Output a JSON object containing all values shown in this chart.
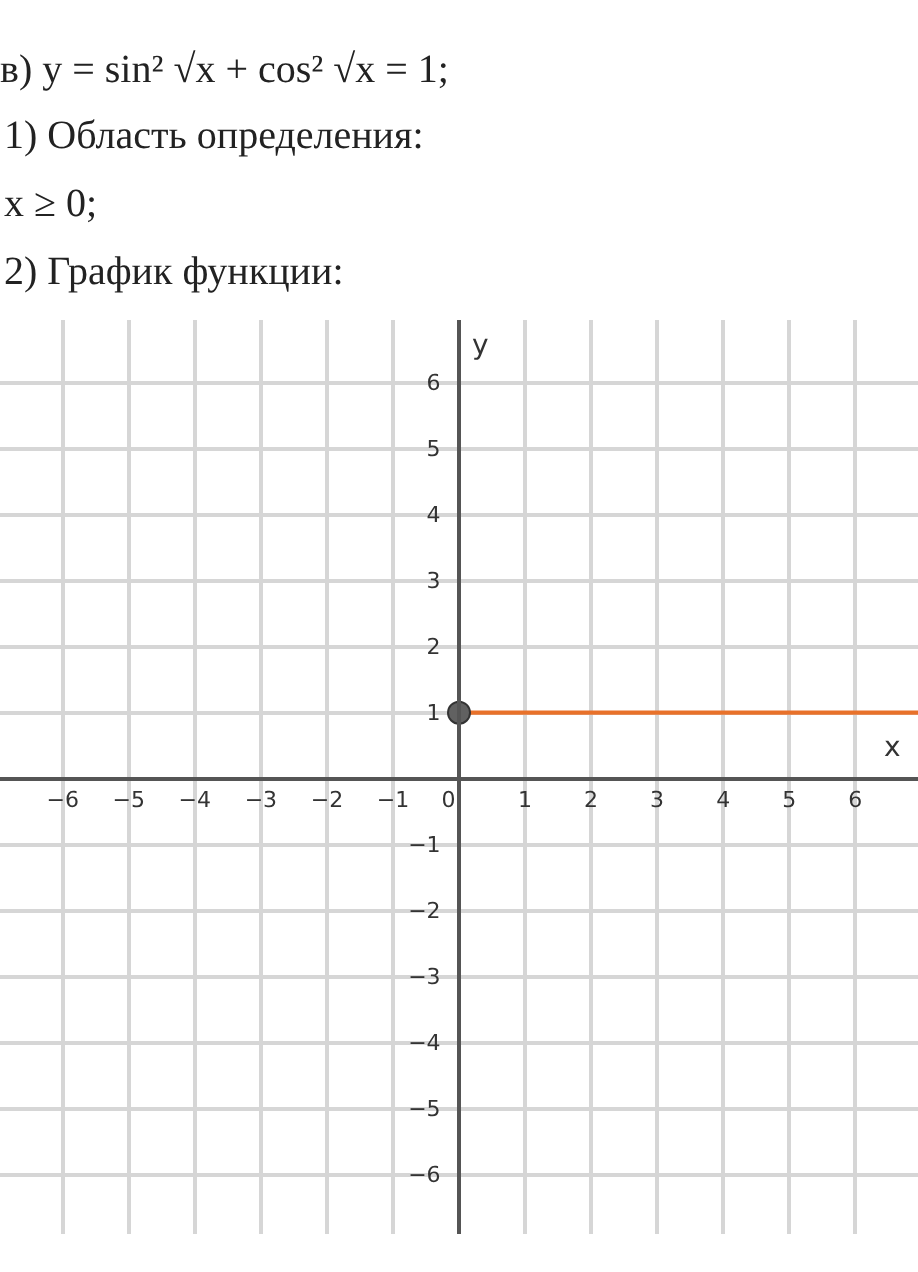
{
  "chart_data": {
    "type": "line",
    "title": "в) y = sin² √x + cos² √x = 1;",
    "annotations": [
      "1) Область определения:",
      "x ≥ 0;",
      "2) График функции:"
    ],
    "xlabel": "x",
    "ylabel": "y",
    "series": [
      {
        "color": "#e8712a",
        "values": [
          1,
          1
        ],
        "marker": "none"
      },
      {
        "type": "scatter",
        "color": "#616161",
        "values": [
          1,
          null
        ],
        "marker": "circle"
      }
    ],
    "x": [
      0,
      6.95
    ],
    "xlim": [
      -6.95,
      6.95
    ],
    "ylim": [
      -6.9,
      6.95
    ],
    "xticks": [
      {
        "value": -6,
        "label": "−6"
      },
      {
        "value": -5,
        "label": "−5"
      },
      {
        "value": -4,
        "label": "−4"
      },
      {
        "value": -3,
        "label": "−3"
      },
      {
        "value": -2,
        "label": "−2"
      },
      {
        "value": -1,
        "label": "−1"
      },
      0,
      1,
      2,
      3,
      4,
      5,
      6
    ],
    "yticks": [
      {
        "value": -6,
        "label": "−6"
      },
      {
        "value": -5,
        "label": "−5"
      },
      {
        "value": -4,
        "label": "−4"
      },
      {
        "value": -3,
        "label": "−3"
      },
      {
        "value": -2,
        "label": "−2"
      },
      {
        "value": -1,
        "label": "−1"
      },
      1,
      2,
      3,
      4,
      5,
      6
    ],
    "grid": true
  }
}
